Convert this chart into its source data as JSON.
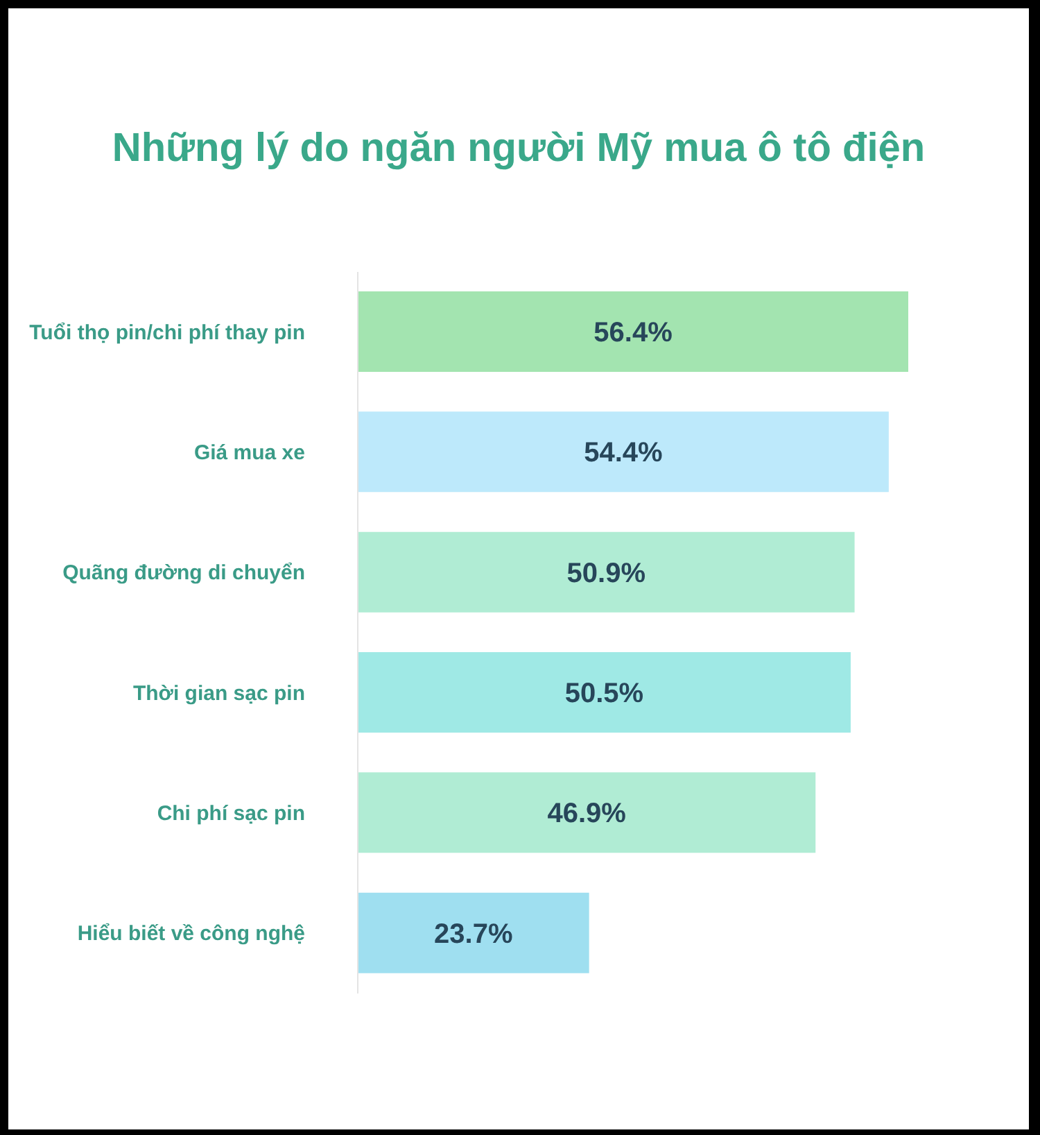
{
  "chart_data": {
    "type": "bar",
    "orientation": "horizontal",
    "title": "Những lý do ngăn người Mỹ mua ô tô điện",
    "categories": [
      "Tuổi thọ pin/chi phí thay pin",
      "Giá mua xe",
      "Quãng đường di chuyển",
      "Thời gian sạc pin",
      "Chi phí sạc pin",
      "Hiểu biết về công nghệ"
    ],
    "values": [
      56.4,
      54.4,
      50.9,
      50.5,
      46.9,
      23.7
    ],
    "colors": [
      "#a3e4b0",
      "#bde9fb",
      "#b0ecd4",
      "#9fe9e5",
      "#b0ecd4",
      "#9fdff0"
    ],
    "value_labels": [
      "56.4%",
      "54.4%",
      "50.9%",
      "50.5%",
      "46.9%",
      "23.7%"
    ]
  }
}
